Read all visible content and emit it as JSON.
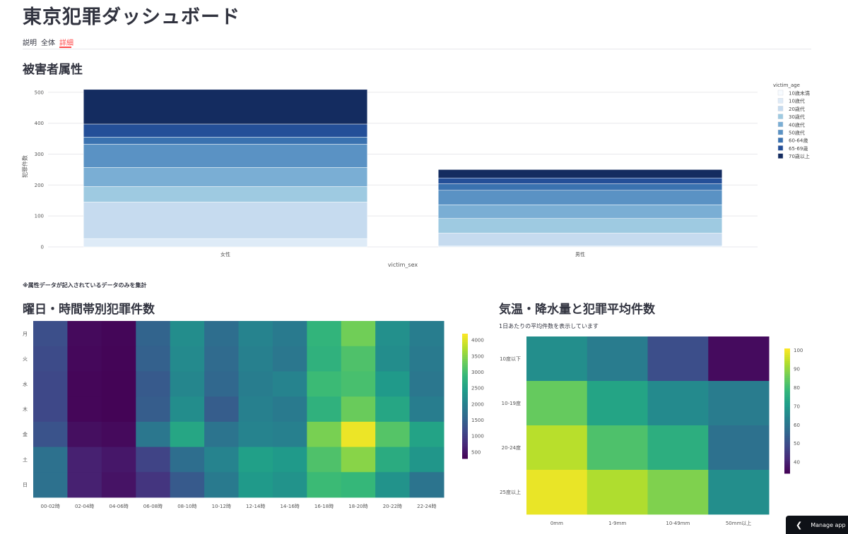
{
  "app": {
    "title": "東京犯罪ダッシュボード",
    "tabs": [
      "説明",
      "全体",
      "詳細"
    ],
    "active_tab": "詳細",
    "accent_color": "#ff4b4b",
    "manage_app_label": "Manage app"
  },
  "victim_section": {
    "heading": "被害者属性",
    "note": "※属性データが記入されているデータのみを集計"
  },
  "weekday_section": {
    "heading": "曜日・時間帯別犯罪件数"
  },
  "weather_section": {
    "heading": "気温・降水量と犯罪平均件数",
    "subtitle": "1日あたりの平均件数を表示しています"
  },
  "chart_data": [
    {
      "type": "bar",
      "stacked": true,
      "xlabel": "victim_sex",
      "ylabel": "犯罪件数",
      "categories": [
        "女性",
        "男性"
      ],
      "ylim": [
        0,
        520
      ],
      "yticks": [
        0,
        100,
        200,
        300,
        400,
        500
      ],
      "legend_title": "victim_age",
      "legend_position": "right",
      "series": [
        {
          "name": "10歳未満",
          "color": "#f7fbff",
          "values": [
            0,
            0
          ]
        },
        {
          "name": "10歳代",
          "color": "#deebf7",
          "values": [
            27,
            3
          ]
        },
        {
          "name": "20歳代",
          "color": "#c6dbef",
          "values": [
            118,
            42
          ]
        },
        {
          "name": "30歳代",
          "color": "#9ecae1",
          "values": [
            50,
            47
          ]
        },
        {
          "name": "40歳代",
          "color": "#7aaed4",
          "values": [
            62,
            44
          ]
        },
        {
          "name": "50歳代",
          "color": "#5a92c4",
          "values": [
            75,
            47
          ]
        },
        {
          "name": "60-64歳",
          "color": "#3a72b0",
          "values": [
            23,
            21
          ]
        },
        {
          "name": "65-69歳",
          "color": "#244f98",
          "values": [
            42,
            19
          ]
        },
        {
          "name": "70歳以上",
          "color": "#142c60",
          "values": [
            112,
            27
          ]
        }
      ]
    },
    {
      "type": "heatmap",
      "x": [
        "00-02時",
        "02-04時",
        "04-06時",
        "06-08時",
        "08-10時",
        "10-12時",
        "12-14時",
        "14-16時",
        "16-18時",
        "18-20時",
        "20-22時",
        "22-24時"
      ],
      "y": [
        "月",
        "火",
        "水",
        "木",
        "金",
        "土",
        "日"
      ],
      "colorscale": "viridis",
      "zlim": [
        300,
        4200
      ],
      "colorbar_ticks": [
        500,
        1000,
        1500,
        2000,
        2500,
        3000,
        3500,
        4000
      ],
      "z": [
        [
          1250,
          400,
          350,
          1550,
          2200,
          1700,
          2050,
          1900,
          2850,
          3350,
          2250,
          1950
        ],
        [
          1200,
          380,
          340,
          1500,
          2150,
          1650,
          2000,
          1850,
          2800,
          3100,
          2200,
          1900
        ],
        [
          1150,
          360,
          330,
          1400,
          2100,
          1600,
          1950,
          2050,
          2950,
          3050,
          2400,
          1850
        ],
        [
          1150,
          360,
          330,
          1450,
          2200,
          1450,
          2000,
          1900,
          2800,
          3300,
          2600,
          1950
        ],
        [
          1300,
          450,
          400,
          1850,
          2600,
          1800,
          2050,
          2000,
          3400,
          4100,
          3150,
          2550
        ],
        [
          1750,
          650,
          550,
          1100,
          1700,
          2050,
          2500,
          2400,
          3100,
          3500,
          2700,
          2350
        ],
        [
          1750,
          650,
          500,
          900,
          1400,
          1900,
          2400,
          2300,
          2950,
          2900,
          2300,
          1800
        ]
      ]
    },
    {
      "type": "heatmap",
      "x": [
        "0mm",
        "1-9mm",
        "10-49mm",
        "50mm以上"
      ],
      "y": [
        "10度以下",
        "10-19度",
        "20-24度",
        "25度以上"
      ],
      "colorscale": "viridis",
      "zlim": [
        34,
        101
      ],
      "colorbar_ticks": [
        40,
        50,
        60,
        70,
        80,
        90,
        100
      ],
      "z": [
        [
          67,
          62,
          50,
          36
        ],
        [
          85,
          73,
          66,
          62
        ],
        [
          94,
          82,
          76,
          59
        ],
        [
          99,
          93,
          88,
          67
        ]
      ]
    }
  ]
}
